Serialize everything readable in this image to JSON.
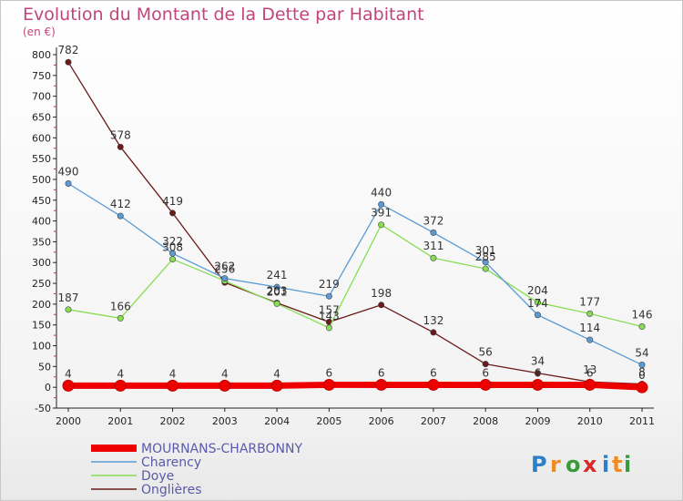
{
  "chart_data": {
    "type": "line",
    "title": "Evolution du Montant de la Dette par Habitant",
    "subtitle": "(en €)",
    "xlabel": "",
    "ylabel": "",
    "x": [
      "2000",
      "2001",
      "2002",
      "2003",
      "2004",
      "2005",
      "2006",
      "2007",
      "2008",
      "2009",
      "2010",
      "2011"
    ],
    "ylim": [
      -50,
      800
    ],
    "yticks": [
      -50,
      0,
      50,
      100,
      150,
      200,
      250,
      300,
      350,
      400,
      450,
      500,
      550,
      600,
      650,
      700,
      750,
      800
    ],
    "grid": false,
    "legend_position": "bottom-left",
    "series": [
      {
        "name": "Onglières",
        "color": "#6b1a1a",
        "width": "thin",
        "values": [
          782,
          578,
          419,
          252,
          203,
          157,
          198,
          132,
          56,
          34,
          13,
          8
        ],
        "labels": [
          "782",
          "578",
          "419",
          "",
          "203",
          "157",
          "198",
          "132",
          "56",
          "34",
          "13",
          "8"
        ]
      },
      {
        "name": "Doye",
        "color": "#88dd55",
        "width": "thin",
        "values": [
          187,
          166,
          308,
          256,
          201,
          143,
          391,
          311,
          285,
          204,
          177,
          146
        ],
        "labels": [
          "187",
          "166",
          "308",
          "256",
          "201",
          "143",
          "391",
          "311",
          "285",
          "204",
          "177",
          "146"
        ]
      },
      {
        "name": "Charency",
        "color": "#5b9bd5",
        "width": "thin",
        "values": [
          490,
          412,
          322,
          262,
          241,
          219,
          440,
          372,
          301,
          174,
          114,
          54
        ],
        "labels": [
          "490",
          "412",
          "322",
          "262",
          "241",
          "219",
          "440",
          "372",
          "301",
          "174",
          "114",
          "54"
        ]
      },
      {
        "name": "MOURNANS-CHARBONNY",
        "color": "#ee0000",
        "width": "thick",
        "values": [
          4,
          4,
          4,
          4,
          4,
          6,
          6,
          6,
          6,
          6,
          6,
          0
        ],
        "labels": [
          "4",
          "4",
          "4",
          "4",
          "4",
          "6",
          "6",
          "6",
          "6",
          "6",
          "6",
          "0"
        ]
      }
    ],
    "legend": [
      {
        "name": "MOURNANS-CHARBONNY",
        "color": "#ee0000",
        "width": "thick"
      },
      {
        "name": "Charency",
        "color": "#5b9bd5",
        "width": "thin"
      },
      {
        "name": "Doye",
        "color": "#88dd55",
        "width": "thin"
      },
      {
        "name": "Onglières",
        "color": "#6b1a1a",
        "width": "thin"
      }
    ]
  },
  "logo": {
    "text": "Proxiti",
    "letter_colors": [
      "#2c7fc9",
      "#f08c1e",
      "#3a9b3a",
      "#d92a2a",
      "#2c7fc9",
      "#f08c1e",
      "#3a9b3a"
    ]
  }
}
